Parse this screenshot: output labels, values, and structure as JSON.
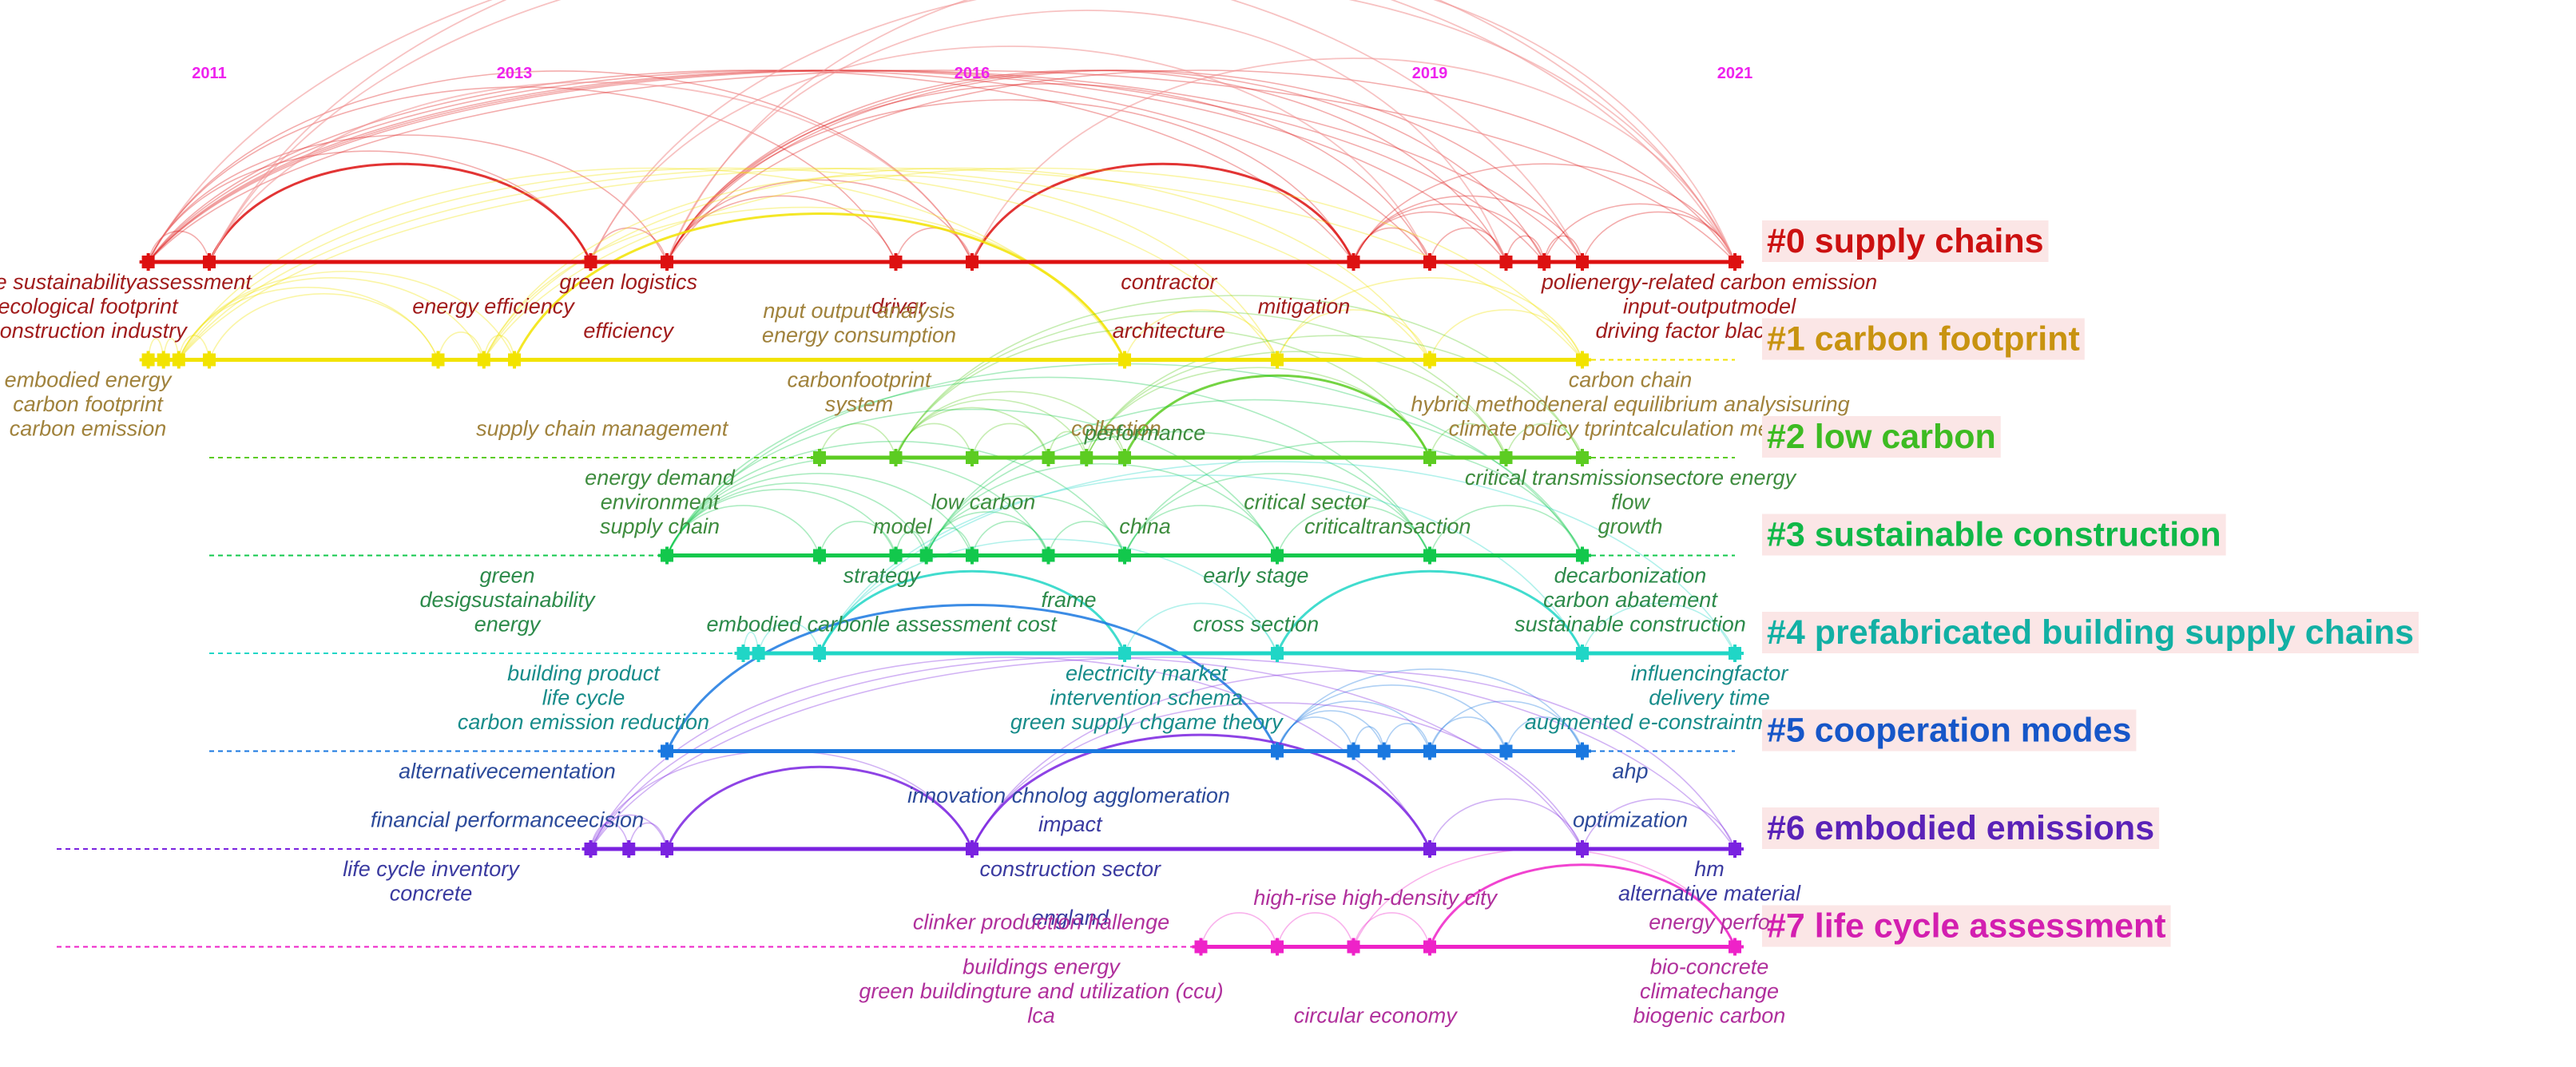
{
  "years": [
    "2011",
    "2013",
    "2016",
    "2019",
    "2021"
  ],
  "colors": {
    "year_text": "#ee22ee",
    "arc_top": "#f09090",
    "cluster_label_bg": "#fbe6e6"
  },
  "clusters": [
    {
      "label": "#0 supply chains",
      "color": "#dd1111",
      "text_color": "#cc1111",
      "kw_color": "#a11c1c",
      "start_year": 2010.6,
      "nodes": [
        2010.6,
        2011.0,
        2013.5,
        2014.0,
        2015.5,
        2016.0,
        2018.5,
        2019.0,
        2019.5,
        2019.75,
        2020.0,
        2021.0
      ],
      "labels_above": [],
      "labels_below": [
        [
          "life cycle sustainabilityassessment",
          "green logistics",
          "contractor",
          "polienergy-related carbon emission"
        ],
        [
          "ecological footprint",
          "energy efficiency",
          "driver",
          "mitigation",
          "input-outputmodel"
        ],
        [
          "construction industry",
          "efficiency",
          "architecture",
          "driving factor black carb"
        ]
      ]
    },
    {
      "label": "#1 carbon footprint",
      "color": "#f2e300",
      "text_color": "#c89310",
      "kw_color": "#a0823c",
      "start_year": 2010.6,
      "nodes": [
        2010.6,
        2010.7,
        2010.8,
        2011.0,
        2012.5,
        2012.8,
        2013.0,
        2017.0,
        2018.0,
        2019.0,
        2020.0
      ],
      "labels_above": [
        [
          "nput output analysis"
        ],
        [
          "energy consumption"
        ]
      ],
      "labels_below": [
        [
          "embodied energy",
          "carbonfootprint",
          "carbon chain"
        ],
        [
          "carbon footprint",
          "system",
          "hybrid methodeneral equilibrium analysisuring"
        ],
        [
          "carbon emission",
          "supply chain management",
          "collection",
          "climate policy tprintcalculation method"
        ]
      ]
    },
    {
      "label": "#2 low carbon",
      "color": "#5ccc22",
      "text_color": "#3dbb22",
      "kw_color": "#3e8c3e",
      "start_year": 2011.0,
      "nodes": [
        2015.0,
        2015.5,
        2016.0,
        2016.5,
        2016.75,
        2017.0,
        2019.0,
        2019.5,
        2020.0
      ],
      "labels_above": [
        [
          "performance"
        ]
      ],
      "labels_below": [
        [
          "energy demand",
          "critical transmissionsectore energy"
        ],
        [
          "environment",
          "low carbon",
          "critical sector",
          "flow"
        ],
        [
          "supply chain",
          "model",
          "china",
          "criticaltransaction",
          "growth"
        ]
      ]
    },
    {
      "label": "#3 sustainable construction",
      "color": "#12c84c",
      "text_color": "#10b848",
      "kw_color": "#2c8a4a",
      "start_year": 2011.0,
      "nodes": [
        2014.0,
        2015.0,
        2015.5,
        2015.7,
        2016.0,
        2016.5,
        2017.0,
        2018.0,
        2019.0,
        2020.0
      ],
      "labels_above": [],
      "labels_below": [
        [
          "green",
          "strategy",
          "early stage",
          "decarbonization"
        ],
        [
          "desigsustainability",
          "frame",
          "carbon abatement"
        ],
        [
          "energy",
          "embodied carbonle assessment cost",
          "cross section",
          "sustainable construction"
        ]
      ]
    },
    {
      "label": "#4 prefabricated building supply chains",
      "color": "#20d6c6",
      "text_color": "#12b0a4",
      "kw_color": "#178c8a",
      "start_year": 2011.0,
      "nodes": [
        2014.5,
        2014.6,
        2015.0,
        2017.0,
        2018.0,
        2020.0,
        2021.0
      ],
      "labels_above": [],
      "labels_below": [
        [
          "building product",
          "electricity market",
          "influencingfactor"
        ],
        [
          "life cycle",
          "intervention schema",
          "delivery time"
        ],
        [
          "carbon emission reduction",
          "green supply chgame theory",
          "augmented e-constraintmethods factor"
        ]
      ]
    },
    {
      "label": "#5 cooperation modes",
      "color": "#1a78e0",
      "text_color": "#1656c8",
      "kw_color": "#2c4a9a",
      "start_year": 2011.0,
      "nodes": [
        2014.0,
        2018.0,
        2018.5,
        2018.7,
        2019.0,
        2019.5,
        2020.0
      ],
      "labels_above": [],
      "labels_below": [
        [
          "alternativecementation",
          "ahp"
        ],
        [
          "innovation chnolog agglomeration"
        ],
        [
          "financial performanceecision",
          "optimization"
        ]
      ]
    },
    {
      "label": "#6 embodied emissions",
      "color": "#7a22e0",
      "text_color": "#5a22b8",
      "kw_color": "#3a3aa0",
      "start_year": 2010.0,
      "nodes": [
        2013.5,
        2013.75,
        2014.0,
        2016.0,
        2019.0,
        2020.0,
        2021.0
      ],
      "labels_above": [
        [
          "impact"
        ]
      ],
      "labels_below": [
        [
          "life cycle inventory",
          "construction sector",
          "hm"
        ],
        [
          "concrete",
          "alternative material"
        ],
        [
          "england"
        ]
      ]
    },
    {
      "label": "#7 life cycle assessment",
      "color": "#ee22c8",
      "text_color": "#d31fb0",
      "kw_color": "#b0309c",
      "start_year": 2010.0,
      "nodes": [
        2017.5,
        2018.0,
        2018.5,
        2019.0,
        2021.0
      ],
      "labels_above": [
        [
          "high-rise high-density city"
        ],
        [
          "clinker production hallenge",
          "energy perfo"
        ]
      ],
      "labels_below": [
        [
          "buildings energy",
          "bio-concrete"
        ],
        [
          "green buildingture and utilization (ccu)",
          "climatechange"
        ],
        [
          "lca",
          "circular economy",
          "biogenic carbon"
        ]
      ]
    }
  ]
}
